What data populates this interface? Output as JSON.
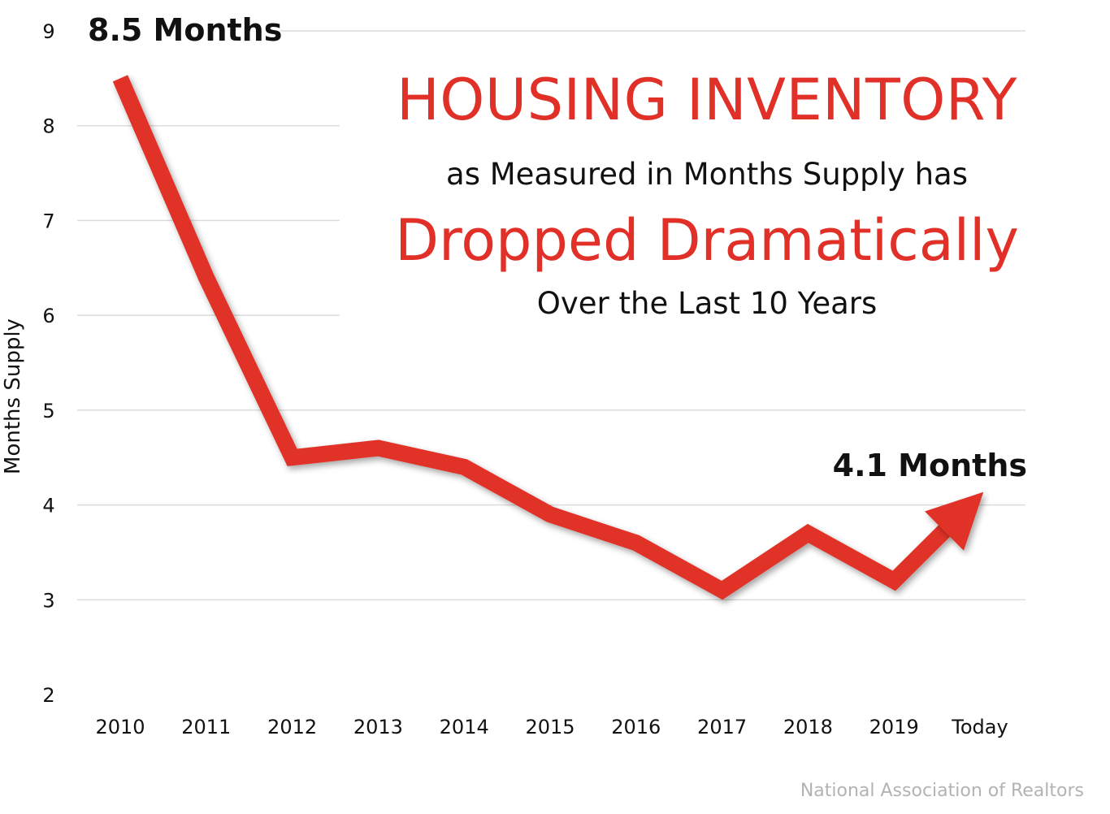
{
  "chart_data": {
    "type": "line",
    "title": "HOUSING INVENTORY",
    "subtitle_1": "as Measured in Months Supply has",
    "subtitle_emphasis": "Dropped Dramatically",
    "subtitle_2": "Over the Last 10 Years",
    "ylabel": "Months Supply",
    "xlabel": "",
    "ylim": [
      2,
      9
    ],
    "y_ticks": [
      "2",
      "3",
      "4",
      "5",
      "6",
      "7",
      "8",
      "9"
    ],
    "categories": [
      "2010",
      "2011",
      "2012",
      "2013",
      "2014",
      "2015",
      "2016",
      "2017",
      "2018",
      "2019",
      "Today"
    ],
    "series": [
      {
        "values": [
          8.5,
          6.4,
          4.5,
          4.6,
          4.4,
          3.9,
          3.6,
          3.1,
          3.7,
          3.2,
          4.1
        ]
      }
    ],
    "annotations": [
      {
        "text": "8.5 Months",
        "category": "2010"
      },
      {
        "text": "4.1 Months",
        "category": "Today"
      }
    ],
    "source": "National Association of Realtors",
    "grid": true,
    "line_color": "#e03028"
  }
}
